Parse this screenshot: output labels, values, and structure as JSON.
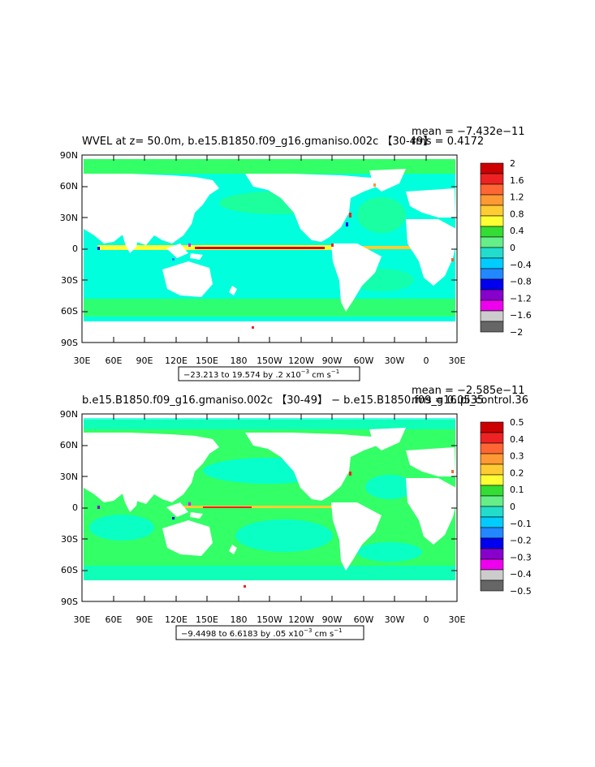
{
  "panels": [
    {
      "title": "WVEL at z=  50.0m, b.e15.B1850.f09_g16.gmaniso.002c 【30-49】",
      "mean": "mean = −7.432e−11",
      "rms": "rms = 0.4172",
      "range": "−23.213 to 19.574 by .2 x10",
      "range_exp": "−3",
      "range_unit": " cm s",
      "range_unit_exp": "−1",
      "colorbar_labels": [
        "2",
        "1.6",
        "1.2",
        "0.8",
        "0.4",
        "0",
        "−0.4",
        "−0.8",
        "−1.2",
        "−1.6",
        "−2"
      ]
    },
    {
      "title": "b.e15.B1850.f09_g16.gmaniso.002c 【30-49】 − b.e15.B1850.f09_g16.pi_control.36",
      "mean": "mean = −2.585e−11",
      "rms": "rms = 0.0535",
      "range": "−9.4498 to 6.6183 by .05 x10",
      "range_exp": "−3",
      "range_unit": " cm s",
      "range_unit_exp": "−1",
      "colorbar_labels": [
        "0.5",
        "0.4",
        "0.3",
        "0.2",
        "0.1",
        "0",
        "−0.1",
        "−0.2",
        "−0.3",
        "−0.4",
        "−0.5"
      ]
    }
  ],
  "axes": {
    "lat_labels": [
      "90N",
      "60N",
      "30N",
      "0",
      "30S",
      "60S",
      "90S"
    ],
    "lon_labels": [
      "30E",
      "60E",
      "90E",
      "120E",
      "150E",
      "180",
      "150W",
      "120W",
      "90W",
      "60W",
      "30W",
      "0",
      "30E"
    ]
  },
  "colors": {
    "colorbar": [
      "#cc0000",
      "#ee2222",
      "#ff6633",
      "#ff9933",
      "#ffcc33",
      "#ffff33",
      "#33dd33",
      "#66ee88",
      "#22ddcc",
      "#00ccff",
      "#2288ff",
      "#0000ee",
      "#8800cc",
      "#ee00ee",
      "#cccccc",
      "#666666"
    ],
    "ocean_main": "#00ffdd",
    "ocean_pos": "#33ff66",
    "land": "#ffffff"
  }
}
